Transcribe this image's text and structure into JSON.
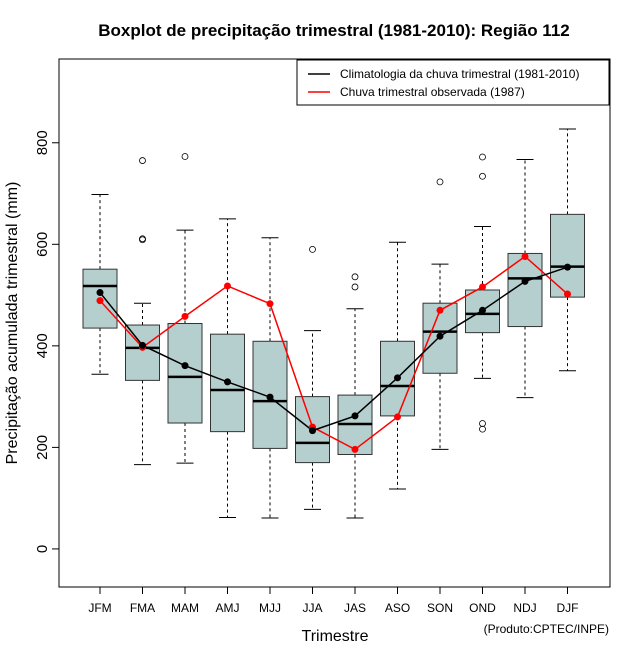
{
  "chart_data": {
    "type": "boxplot",
    "title": "Boxplot de precipitação trimestral (1981-2010): Região 112",
    "xlabel": "Trimestre",
    "ylabel": "Precipitação acumulada trimestral (mm)",
    "ylim": [
      -75,
      965
    ],
    "yticks": [
      0,
      200,
      400,
      600,
      800
    ],
    "credit": "(Produto:CPTEC/INPE)",
    "categories": [
      "JFM",
      "FMA",
      "MAM",
      "AMJ",
      "MJJ",
      "JJA",
      "JAS",
      "ASO",
      "SON",
      "OND",
      "NDJ",
      "DJF"
    ],
    "boxes": [
      {
        "whisker_low": 344,
        "q1": 435,
        "median": 518,
        "q3": 551,
        "whisker_high": 698,
        "outliers": []
      },
      {
        "whisker_low": 166,
        "q1": 332,
        "median": 396,
        "q3": 441,
        "whisker_high": 484,
        "outliers": [
          765,
          611,
          609
        ]
      },
      {
        "whisker_low": 169,
        "q1": 248,
        "median": 339,
        "q3": 444,
        "whisker_high": 628,
        "outliers": [
          773
        ]
      },
      {
        "whisker_low": 62,
        "q1": 231,
        "median": 313,
        "q3": 423,
        "whisker_high": 650,
        "outliers": []
      },
      {
        "whisker_low": 61,
        "q1": 198,
        "median": 291,
        "q3": 409,
        "whisker_high": 613,
        "outliers": []
      },
      {
        "whisker_low": 78,
        "q1": 170,
        "median": 209,
        "q3": 300,
        "whisker_high": 430,
        "outliers": [
          590
        ]
      },
      {
        "whisker_low": 61,
        "q1": 186,
        "median": 246,
        "q3": 303,
        "whisker_high": 473,
        "outliers": [
          536,
          516
        ]
      },
      {
        "whisker_low": 118,
        "q1": 262,
        "median": 321,
        "q3": 409,
        "whisker_high": 604,
        "outliers": []
      },
      {
        "whisker_low": 196,
        "q1": 346,
        "median": 428,
        "q3": 484,
        "whisker_high": 561,
        "outliers": [
          723
        ]
      },
      {
        "whisker_low": 336,
        "q1": 426,
        "median": 463,
        "q3": 510,
        "whisker_high": 635,
        "outliers": [
          772,
          734,
          247,
          236
        ]
      },
      {
        "whisker_low": 298,
        "q1": 438,
        "median": 533,
        "q3": 582,
        "whisker_high": 767,
        "outliers": []
      },
      {
        "whisker_low": 351,
        "q1": 496,
        "median": 556,
        "q3": 659,
        "whisker_high": 827,
        "outliers": []
      }
    ],
    "series": [
      {
        "name": "Climatologia da chuva trimestral (1981-2010)",
        "color": "#000000",
        "values": [
          505,
          401,
          361,
          329,
          299,
          233,
          262,
          337,
          419,
          470,
          527,
          555
        ]
      },
      {
        "name": "Chuva trimestral observada (1987)",
        "color": "#ff0000",
        "values": [
          489,
          397,
          458,
          518,
          483,
          240,
          196,
          260,
          470,
          516,
          576,
          502
        ]
      }
    ],
    "box_fill": "#b5cfcf",
    "legend_position": "top-right"
  }
}
